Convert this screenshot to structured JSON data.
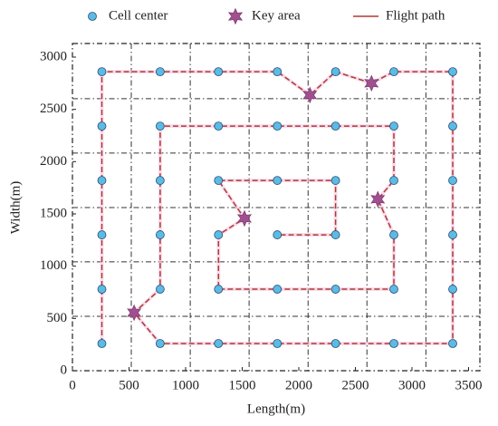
{
  "chart_data": {
    "type": "scatter",
    "xlabel": "Length(m)",
    "ylabel": "Width(m)",
    "xlim": [
      0,
      3600
    ],
    "ylim": [
      0,
      3130
    ],
    "xticks": [
      0,
      500,
      1000,
      1500,
      2000,
      2500,
      3000,
      3500
    ],
    "yticks": [
      0,
      500,
      1000,
      1500,
      2000,
      2500,
      3000
    ],
    "grid_x": [
      520,
      1041,
      1561,
      2082,
      2602,
      3123
    ],
    "grid_y": [
      520,
      1041,
      1561,
      2082,
      2602
    ],
    "legend_position": "top",
    "series": [
      {
        "name": "Cell center",
        "marker": "circle",
        "color": "#5bbbe6",
        "x": [
          260,
          775,
          1290,
          1810,
          2325,
          2840,
          3360,
          260,
          775,
          1290,
          1810,
          2325,
          2840,
          3360,
          260,
          775,
          1290,
          1810,
          2325,
          2840,
          3360,
          260,
          775,
          1290,
          1810,
          2325,
          2840,
          3360,
          260,
          775,
          1290,
          1810,
          2325,
          2840,
          3360,
          260,
          775,
          1290,
          1810,
          2325,
          2840,
          3360
        ],
        "y": [
          2860,
          2860,
          2860,
          2860,
          2860,
          2860,
          2860,
          2340,
          2340,
          2340,
          2340,
          2340,
          2340,
          2340,
          1820,
          1820,
          1820,
          1820,
          1820,
          1820,
          1820,
          1300,
          1300,
          1300,
          1300,
          1300,
          1300,
          1300,
          780,
          780,
          780,
          780,
          780,
          780,
          780,
          260,
          260,
          260,
          260,
          260,
          260,
          260
        ]
      },
      {
        "name": "Key area",
        "marker": "star",
        "color": "#a0508f",
        "x": [
          545,
          1520,
          2098,
          2642,
          2698
        ],
        "y": [
          555,
          1457,
          2637,
          2750,
          1640
        ]
      },
      {
        "name": "Flight path",
        "marker": "line",
        "color": "#b03a2e",
        "x": [
          260,
          260,
          775,
          1290,
          1810,
          2098,
          2325,
          2642,
          2840,
          3360,
          3360,
          775,
          545,
          775,
          775,
          2840,
          2840,
          2698,
          2840,
          2840,
          1290,
          1290,
          1520,
          1290,
          2325,
          2325,
          1810
        ],
        "y": [
          260,
          2860,
          2860,
          2860,
          2860,
          2637,
          2860,
          2750,
          2860,
          2860,
          260,
          260,
          555,
          780,
          2340,
          2340,
          1820,
          1640,
          1300,
          780,
          780,
          1300,
          1457,
          1820,
          1820,
          1300,
          1300
        ]
      }
    ]
  }
}
